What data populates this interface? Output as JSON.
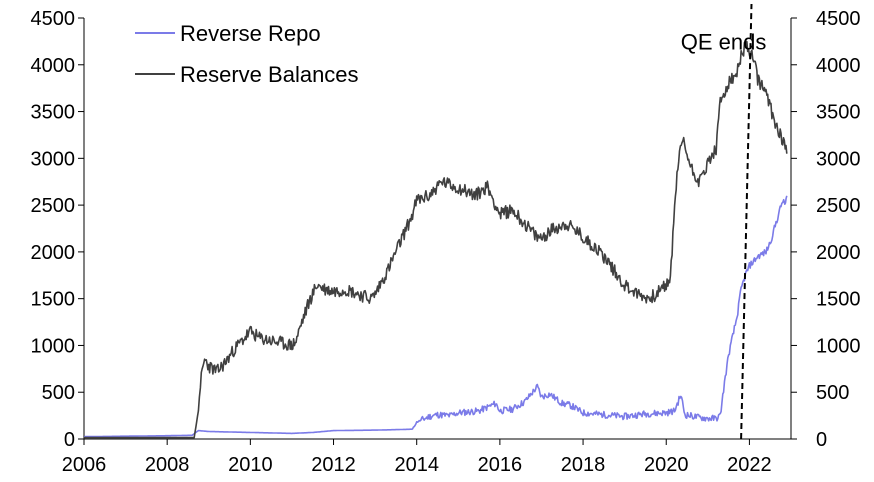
{
  "chart_data": {
    "type": "line",
    "title": "",
    "xlabel": "",
    "ylabel": "",
    "xlim": [
      2006,
      2023
    ],
    "ylim": [
      0,
      4500
    ],
    "x_ticks": [
      2006,
      2008,
      2010,
      2012,
      2014,
      2016,
      2018,
      2020,
      2022
    ],
    "y_ticks": [
      0,
      500,
      1000,
      1500,
      2000,
      2500,
      3000,
      3500,
      4000,
      4500
    ],
    "x_tick_labels": [
      "2006",
      "2008",
      "2010",
      "2012",
      "2014",
      "2016",
      "2018",
      "2020",
      "2022"
    ],
    "y_tick_labels_left": [
      "0",
      "500",
      "1000",
      "1500",
      "2000",
      "2500",
      "3000",
      "3500",
      "4000",
      "4500"
    ],
    "y_tick_labels_right": [
      "0",
      "500",
      "1000",
      "1500",
      "2000",
      "2500",
      "3000",
      "3500",
      "4000",
      "4500"
    ],
    "legend": {
      "position": "top-left",
      "entries": [
        "Reverse Repo",
        "Reserve Balances"
      ]
    },
    "series": [
      {
        "name": "Reverse Repo",
        "color": "#7B7BE8",
        "points": [
          [
            2006.0,
            25
          ],
          [
            2007.0,
            30
          ],
          [
            2008.0,
            35
          ],
          [
            2008.6,
            40
          ],
          [
            2008.75,
            90
          ],
          [
            2009.0,
            80
          ],
          [
            2010.0,
            70
          ],
          [
            2011.0,
            60
          ],
          [
            2011.5,
            70
          ],
          [
            2012.0,
            90
          ],
          [
            2013.0,
            95
          ],
          [
            2013.5,
            100
          ],
          [
            2013.9,
            105
          ],
          [
            2014.0,
            180
          ],
          [
            2014.3,
            240
          ],
          [
            2014.5,
            260
          ],
          [
            2014.8,
            250
          ],
          [
            2015.0,
            280
          ],
          [
            2015.5,
            300
          ],
          [
            2015.9,
            380
          ],
          [
            2016.0,
            300
          ],
          [
            2016.3,
            320
          ],
          [
            2016.6,
            400
          ],
          [
            2016.9,
            560
          ],
          [
            2017.0,
            450
          ],
          [
            2017.2,
            480
          ],
          [
            2017.5,
            380
          ],
          [
            2017.7,
            360
          ],
          [
            2018.0,
            280
          ],
          [
            2018.5,
            260
          ],
          [
            2019.0,
            240
          ],
          [
            2019.5,
            270
          ],
          [
            2020.0,
            280
          ],
          [
            2020.2,
            300
          ],
          [
            2020.35,
            470
          ],
          [
            2020.45,
            260
          ],
          [
            2020.8,
            230
          ],
          [
            2021.0,
            220
          ],
          [
            2021.2,
            220
          ],
          [
            2021.3,
            250
          ],
          [
            2021.4,
            600
          ],
          [
            2021.5,
            900
          ],
          [
            2021.6,
            1100
          ],
          [
            2021.7,
            1300
          ],
          [
            2021.8,
            1600
          ],
          [
            2021.9,
            1750
          ],
          [
            2022.0,
            1850
          ],
          [
            2022.2,
            1950
          ],
          [
            2022.4,
            2000
          ],
          [
            2022.5,
            2100
          ],
          [
            2022.6,
            2250
          ],
          [
            2022.7,
            2400
          ],
          [
            2022.8,
            2550
          ],
          [
            2022.85,
            2500
          ],
          [
            2022.9,
            2600
          ]
        ]
      },
      {
        "name": "Reserve Balances",
        "color": "#404040",
        "points": [
          [
            2006.0,
            15
          ],
          [
            2007.0,
            15
          ],
          [
            2008.0,
            15
          ],
          [
            2008.65,
            15
          ],
          [
            2008.75,
            300
          ],
          [
            2008.8,
            600
          ],
          [
            2008.9,
            850
          ],
          [
            2009.0,
            780
          ],
          [
            2009.2,
            720
          ],
          [
            2009.4,
            820
          ],
          [
            2009.6,
            950
          ],
          [
            2009.8,
            1050
          ],
          [
            2010.0,
            1150
          ],
          [
            2010.2,
            1080
          ],
          [
            2010.5,
            1050
          ],
          [
            2010.8,
            1020
          ],
          [
            2011.0,
            1000
          ],
          [
            2011.1,
            1050
          ],
          [
            2011.2,
            1200
          ],
          [
            2011.4,
            1450
          ],
          [
            2011.6,
            1650
          ],
          [
            2011.8,
            1600
          ],
          [
            2012.0,
            1580
          ],
          [
            2012.3,
            1600
          ],
          [
            2012.6,
            1550
          ],
          [
            2012.9,
            1500
          ],
          [
            2013.0,
            1550
          ],
          [
            2013.3,
            1800
          ],
          [
            2013.6,
            2100
          ],
          [
            2013.9,
            2400
          ],
          [
            2014.0,
            2550
          ],
          [
            2014.3,
            2600
          ],
          [
            2014.6,
            2750
          ],
          [
            2014.9,
            2700
          ],
          [
            2015.2,
            2650
          ],
          [
            2015.4,
            2600
          ],
          [
            2015.7,
            2700
          ],
          [
            2016.0,
            2400
          ],
          [
            2016.3,
            2450
          ],
          [
            2016.6,
            2300
          ],
          [
            2016.9,
            2150
          ],
          [
            2017.0,
            2150
          ],
          [
            2017.3,
            2250
          ],
          [
            2017.6,
            2300
          ],
          [
            2017.9,
            2200
          ],
          [
            2018.0,
            2150
          ],
          [
            2018.3,
            2050
          ],
          [
            2018.6,
            1900
          ],
          [
            2018.9,
            1700
          ],
          [
            2019.0,
            1650
          ],
          [
            2019.3,
            1550
          ],
          [
            2019.6,
            1500
          ],
          [
            2019.9,
            1600
          ],
          [
            2020.0,
            1650
          ],
          [
            2020.1,
            1700
          ],
          [
            2020.2,
            2500
          ],
          [
            2020.3,
            3000
          ],
          [
            2020.4,
            3200
          ],
          [
            2020.6,
            2900
          ],
          [
            2020.8,
            2750
          ],
          [
            2021.0,
            2950
          ],
          [
            2021.2,
            3100
          ],
          [
            2021.3,
            3600
          ],
          [
            2021.5,
            3800
          ],
          [
            2021.7,
            3900
          ],
          [
            2021.8,
            4100
          ],
          [
            2021.9,
            4200
          ],
          [
            2022.0,
            4150
          ],
          [
            2022.1,
            4050
          ],
          [
            2022.2,
            3850
          ],
          [
            2022.4,
            3700
          ],
          [
            2022.6,
            3400
          ],
          [
            2022.8,
            3200
          ],
          [
            2022.9,
            3050
          ]
        ]
      }
    ],
    "annotations": [
      {
        "text": "QE ends",
        "type": "dashed-line",
        "line": [
          [
            2021.8,
            0
          ],
          [
            2022.05,
            4650
          ]
        ],
        "label_at": [
          2020.35,
          4250
        ]
      }
    ]
  }
}
